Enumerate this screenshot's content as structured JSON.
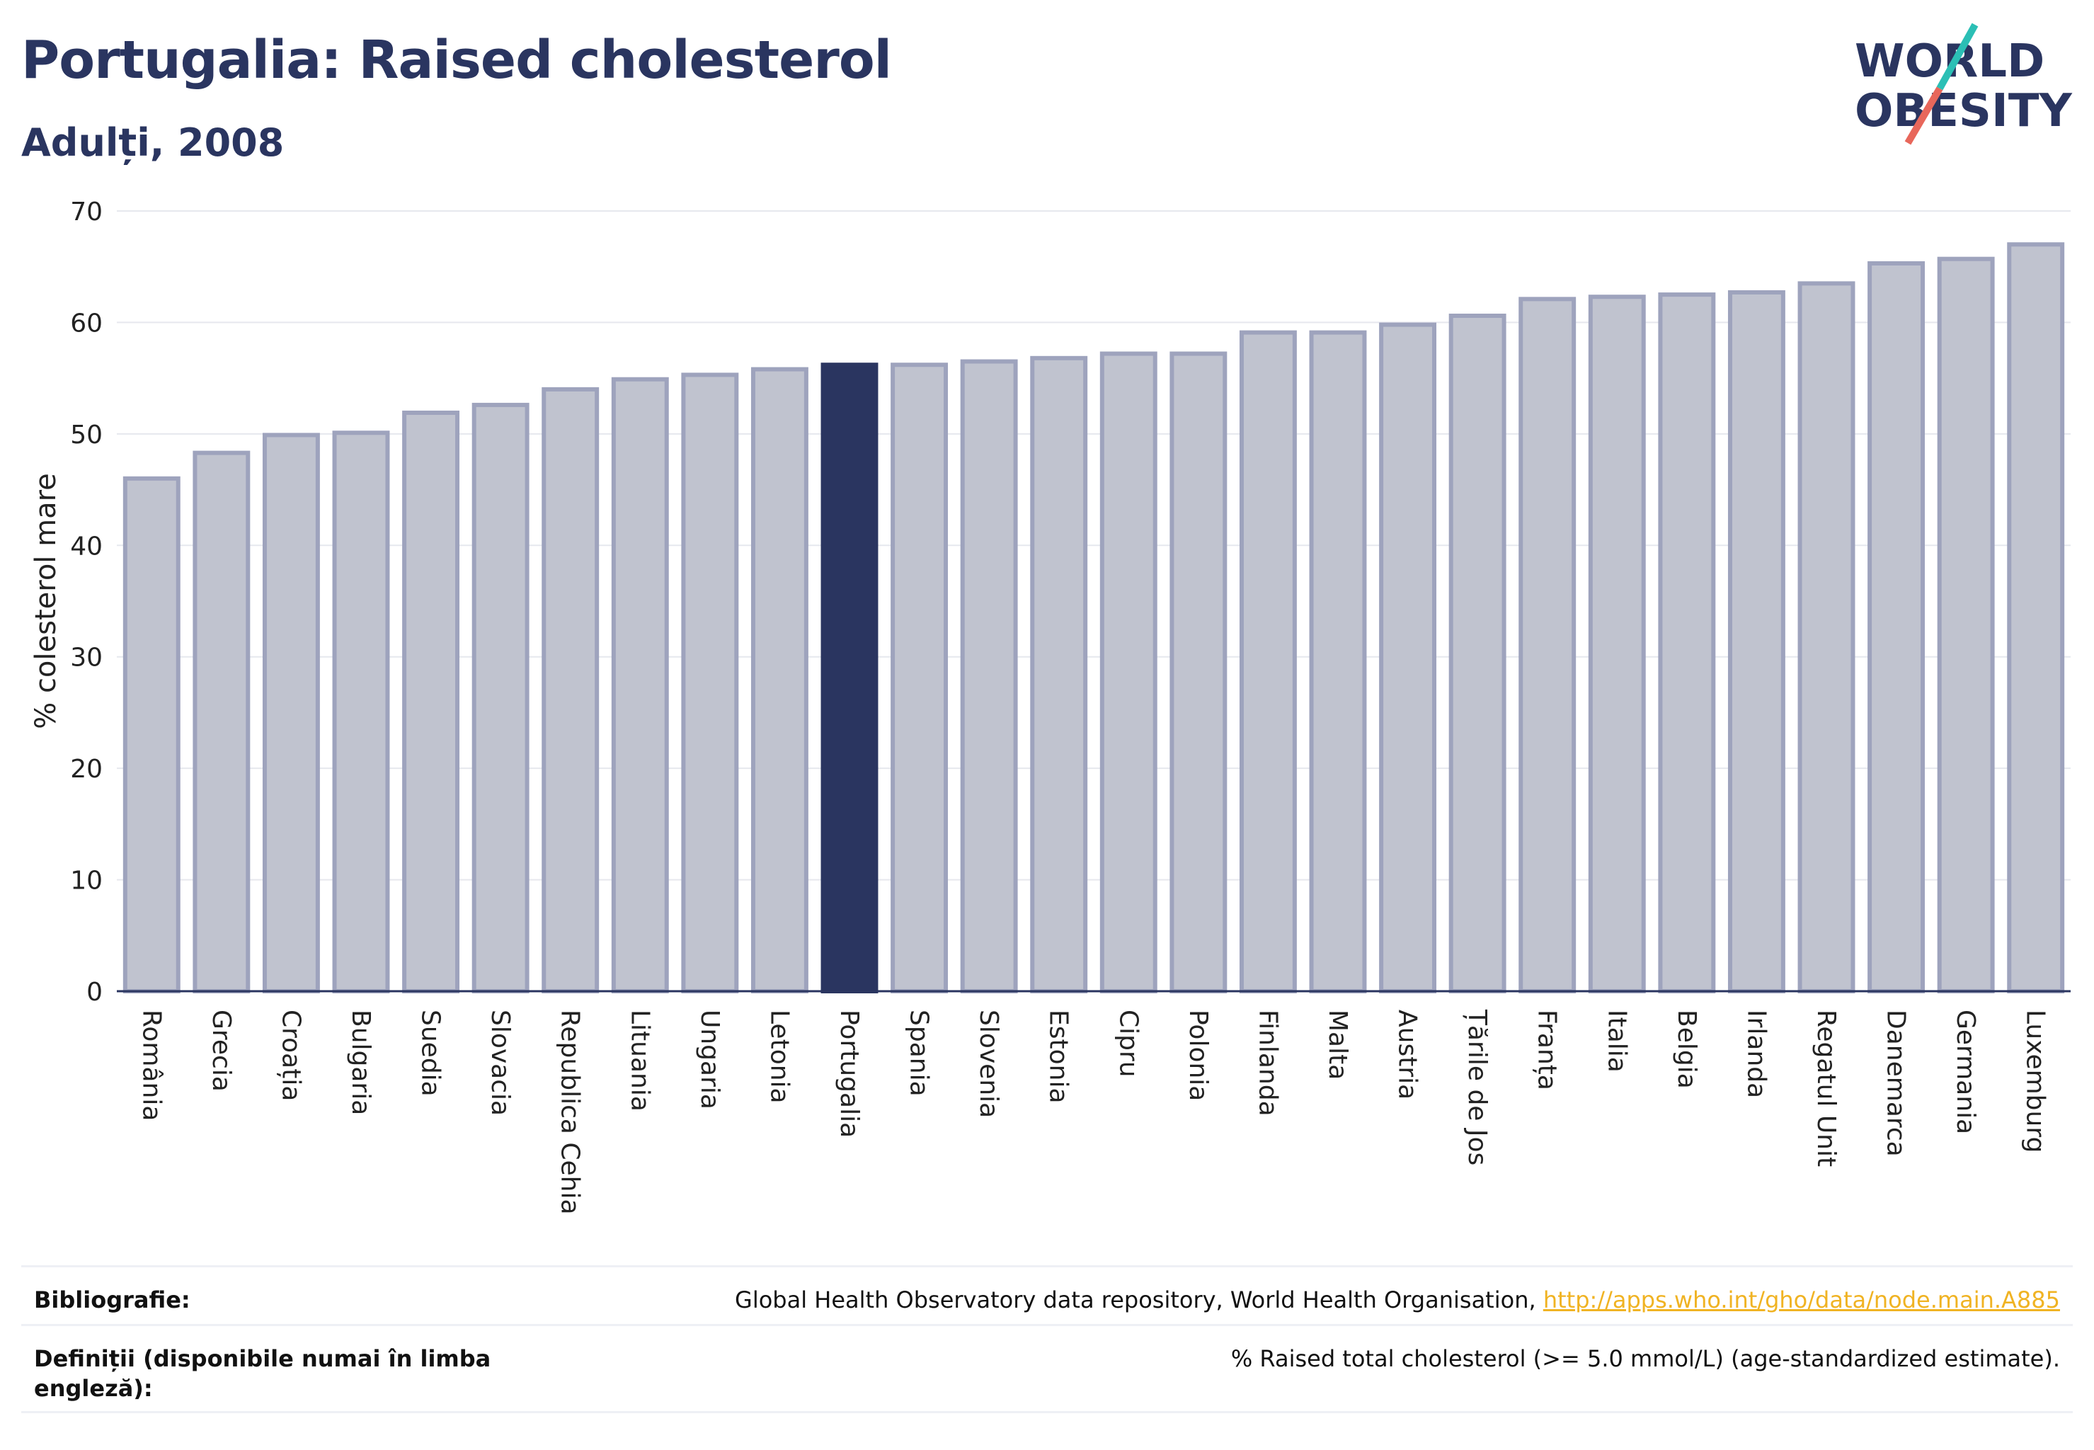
{
  "header": {
    "title": "Portugalia: Raised cholesterol",
    "subtitle": "Adulți, 2008"
  },
  "logo": {
    "line1": "WORLD",
    "line2": "OBESITY",
    "colors": {
      "text": "#2a3560",
      "slash_top": "#2bbfb5",
      "slash_bottom": "#e8675b"
    }
  },
  "colors": {
    "bar_fill": "#c0c3cf",
    "bar_stroke": "#9ea3bd",
    "highlight": "#2a3560",
    "grid": "#e6e8ee",
    "axis": "#2a3560"
  },
  "chart_data": {
    "type": "bar",
    "ylabel": "% colesterol mare",
    "ylim": [
      0,
      70
    ],
    "yticks": [
      0,
      10,
      20,
      30,
      40,
      50,
      60,
      70
    ],
    "highlight": "Portugalia",
    "categories": [
      "România",
      "Grecia",
      "Croația",
      "Bulgaria",
      "Suedia",
      "Slovacia",
      "Republica Cehia",
      "Lituania",
      "Ungaria",
      "Letonia",
      "Portugalia",
      "Spania",
      "Slovenia",
      "Estonia",
      "Cipru",
      "Polonia",
      "Finlanda",
      "Malta",
      "Austria",
      "Țările de Jos",
      "Franța",
      "Italia",
      "Belgia",
      "Irlanda",
      "Regatul Unit",
      "Danemarca",
      "Germania",
      "Luxemburg"
    ],
    "values": [
      46.0,
      48.3,
      49.9,
      50.1,
      51.9,
      52.6,
      54.0,
      54.9,
      55.3,
      55.8,
      56.2,
      56.2,
      56.5,
      56.8,
      57.2,
      57.2,
      59.1,
      59.1,
      59.8,
      60.6,
      62.1,
      62.3,
      62.5,
      62.7,
      63.5,
      65.3,
      65.7,
      67.0
    ]
  },
  "footer": {
    "bib_label": "Bibliografie:",
    "bib_text": "Global Health Observatory data repository, World Health Organisation, ",
    "bib_link": "http://apps.who.int/gho/data/node.main.A885",
    "def_label": "Definiții (disponibile numai în limba engleză):",
    "def_text": "% Raised total cholesterol (>= 5.0 mmol/L) (age-standardized estimate)."
  }
}
